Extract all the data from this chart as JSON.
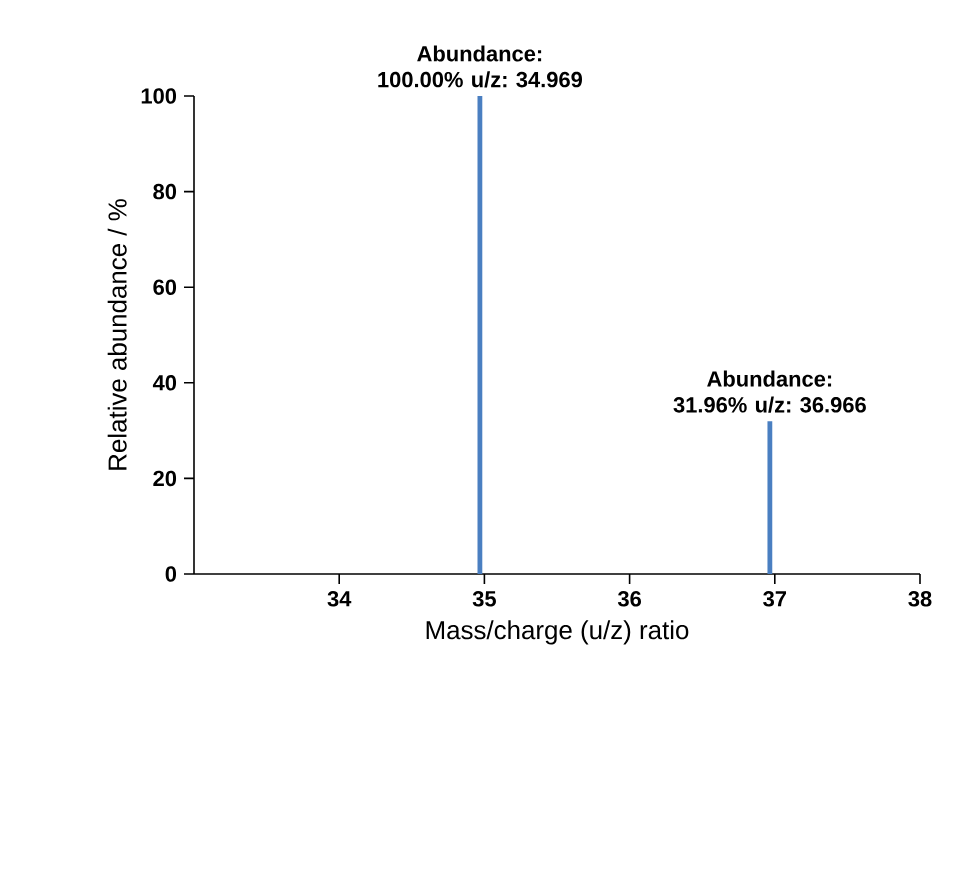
{
  "chart_data": {
    "type": "bar",
    "xlabel": "Mass/charge (u/z) ratio",
    "ylabel": "Relative abundance / %",
    "x": [
      34.969,
      36.966
    ],
    "values": [
      100,
      31.96
    ],
    "color": "#4a7fc1",
    "xlim": [
      33,
      38
    ],
    "xticks": [
      34,
      35,
      36,
      37,
      38
    ],
    "ylim": [
      0,
      100
    ],
    "yticks": [
      0,
      20,
      40,
      60,
      80,
      100
    ],
    "grid": false,
    "value_labels": [
      "Abundance: 100.00% u/z: 34.969",
      "Abundance: 31.96% u/z: 36.966"
    ]
  }
}
